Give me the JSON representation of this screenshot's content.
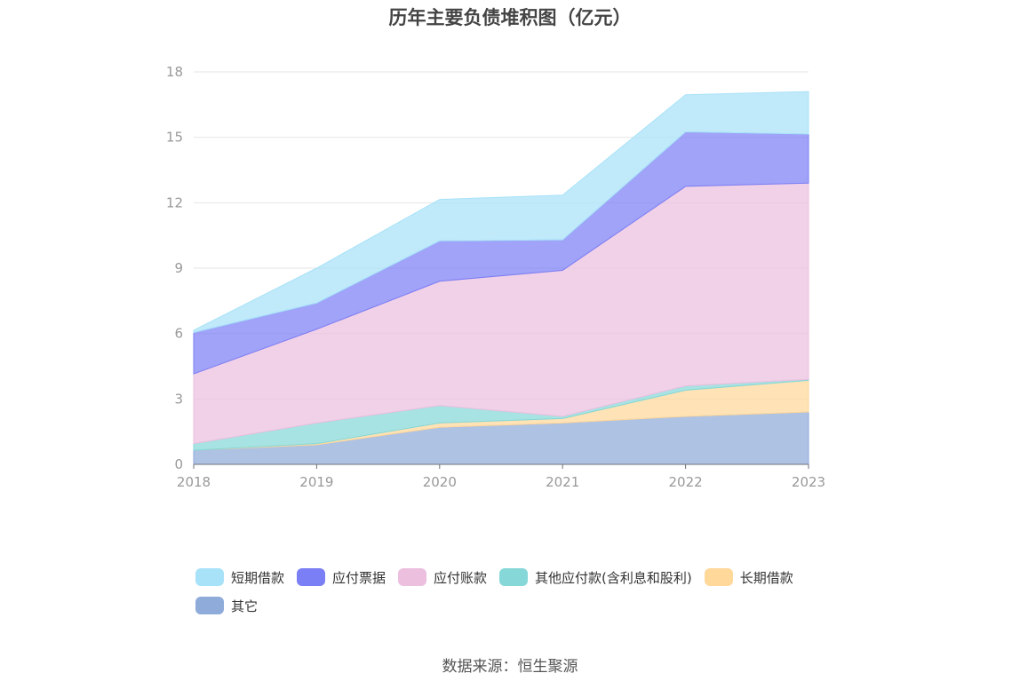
{
  "title": "历年主要负债堆积图（亿元）",
  "source": "数据来源：恒生聚源",
  "chart_data": {
    "type": "area",
    "stacked": true,
    "x": [
      "2018",
      "2019",
      "2020",
      "2021",
      "2022",
      "2023"
    ],
    "ylim": [
      0,
      18
    ],
    "yticks": [
      0,
      3,
      6,
      9,
      12,
      15,
      18
    ],
    "grid": true,
    "legend_position": "bottom",
    "series": [
      {
        "name": "其它",
        "color": "#8fabda",
        "values": [
          0.65,
          0.9,
          1.7,
          1.9,
          2.2,
          2.4
        ]
      },
      {
        "name": "长期借款",
        "color": "#ffd89a",
        "values": [
          0,
          0.05,
          0.2,
          0.2,
          1.2,
          1.45
        ]
      },
      {
        "name": "其他应付款(含利息和股利)",
        "color": "#86d8d8",
        "values": [
          0.3,
          0.95,
          0.8,
          0.1,
          0.2,
          0.05
        ]
      },
      {
        "name": "应付账款",
        "color": "#ecbfdf",
        "values": [
          3.2,
          4.3,
          5.7,
          6.7,
          9.15,
          9.0
        ]
      },
      {
        "name": "应付票据",
        "color": "#7b7ff5",
        "values": [
          1.9,
          1.2,
          1.85,
          1.4,
          2.5,
          2.25
        ]
      },
      {
        "name": "短期借款",
        "color": "#a8e2f8",
        "values": [
          0.1,
          1.6,
          1.9,
          2.05,
          1.7,
          1.95
        ]
      }
    ],
    "legend_order": [
      "短期借款",
      "应付票据",
      "应付账款",
      "其他应付款(含利息和股利)",
      "长期借款",
      "其它"
    ]
  }
}
